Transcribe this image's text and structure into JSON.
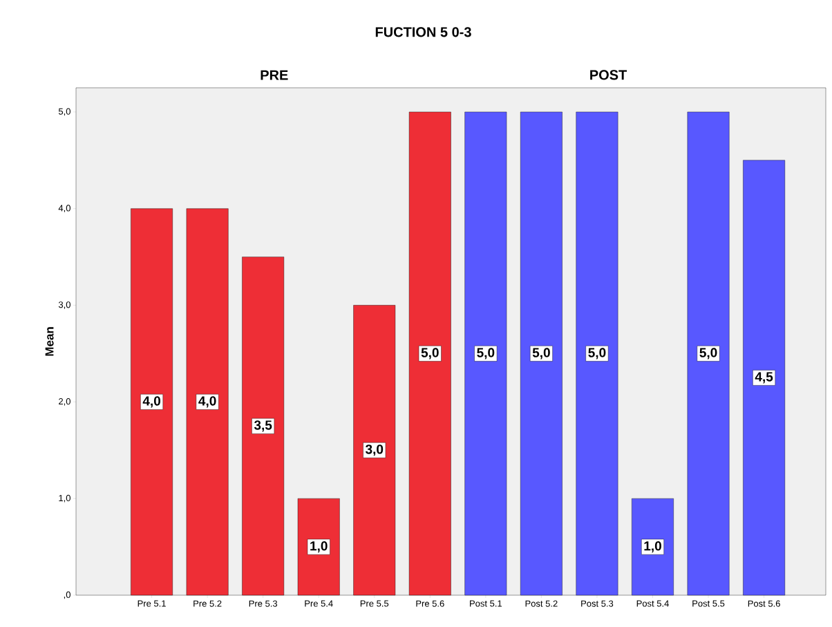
{
  "chart_data": {
    "type": "bar",
    "title": "FUCTION 5 0-3",
    "ylabel": "Mean",
    "categories": [
      "Pre 5.1",
      "Pre 5.2",
      "Pre 5.3",
      "Pre 5.4",
      "Pre 5.5",
      "Pre 5.6",
      "Post 5.1",
      "Post 5.2",
      "Post 5.3",
      "Post 5.4",
      "Post 5.5",
      "Post 5.6"
    ],
    "values": [
      4,
      4,
      3.5,
      1,
      3,
      5,
      5,
      5,
      5,
      1,
      5,
      4.5
    ],
    "value_labels": [
      "4,0",
      "4,0",
      "3,5",
      "1,0",
      "3,0",
      "5,0",
      "5,0",
      "5,0",
      "5,0",
      "1,0",
      "5,0",
      "4,5"
    ],
    "colors": [
      "#ee2e36",
      "#ee2e36",
      "#ee2e36",
      "#ee2e36",
      "#ee2e36",
      "#ee2e36",
      "#5858ff",
      "#5858ff",
      "#5858ff",
      "#5858ff",
      "#5858ff",
      "#5858ff"
    ],
    "annotations": [
      "PRE",
      "POST"
    ],
    "ylim": [
      0,
      5.25
    ],
    "yticks": [
      {
        "value": 0,
        "label": ",0"
      },
      {
        "value": 1,
        "label": "1,0"
      },
      {
        "value": 2,
        "label": "2,0"
      },
      {
        "value": 3,
        "label": "3,0"
      },
      {
        "value": 4,
        "label": "4,0"
      },
      {
        "value": 5,
        "label": "5,0"
      }
    ],
    "grid": false
  }
}
